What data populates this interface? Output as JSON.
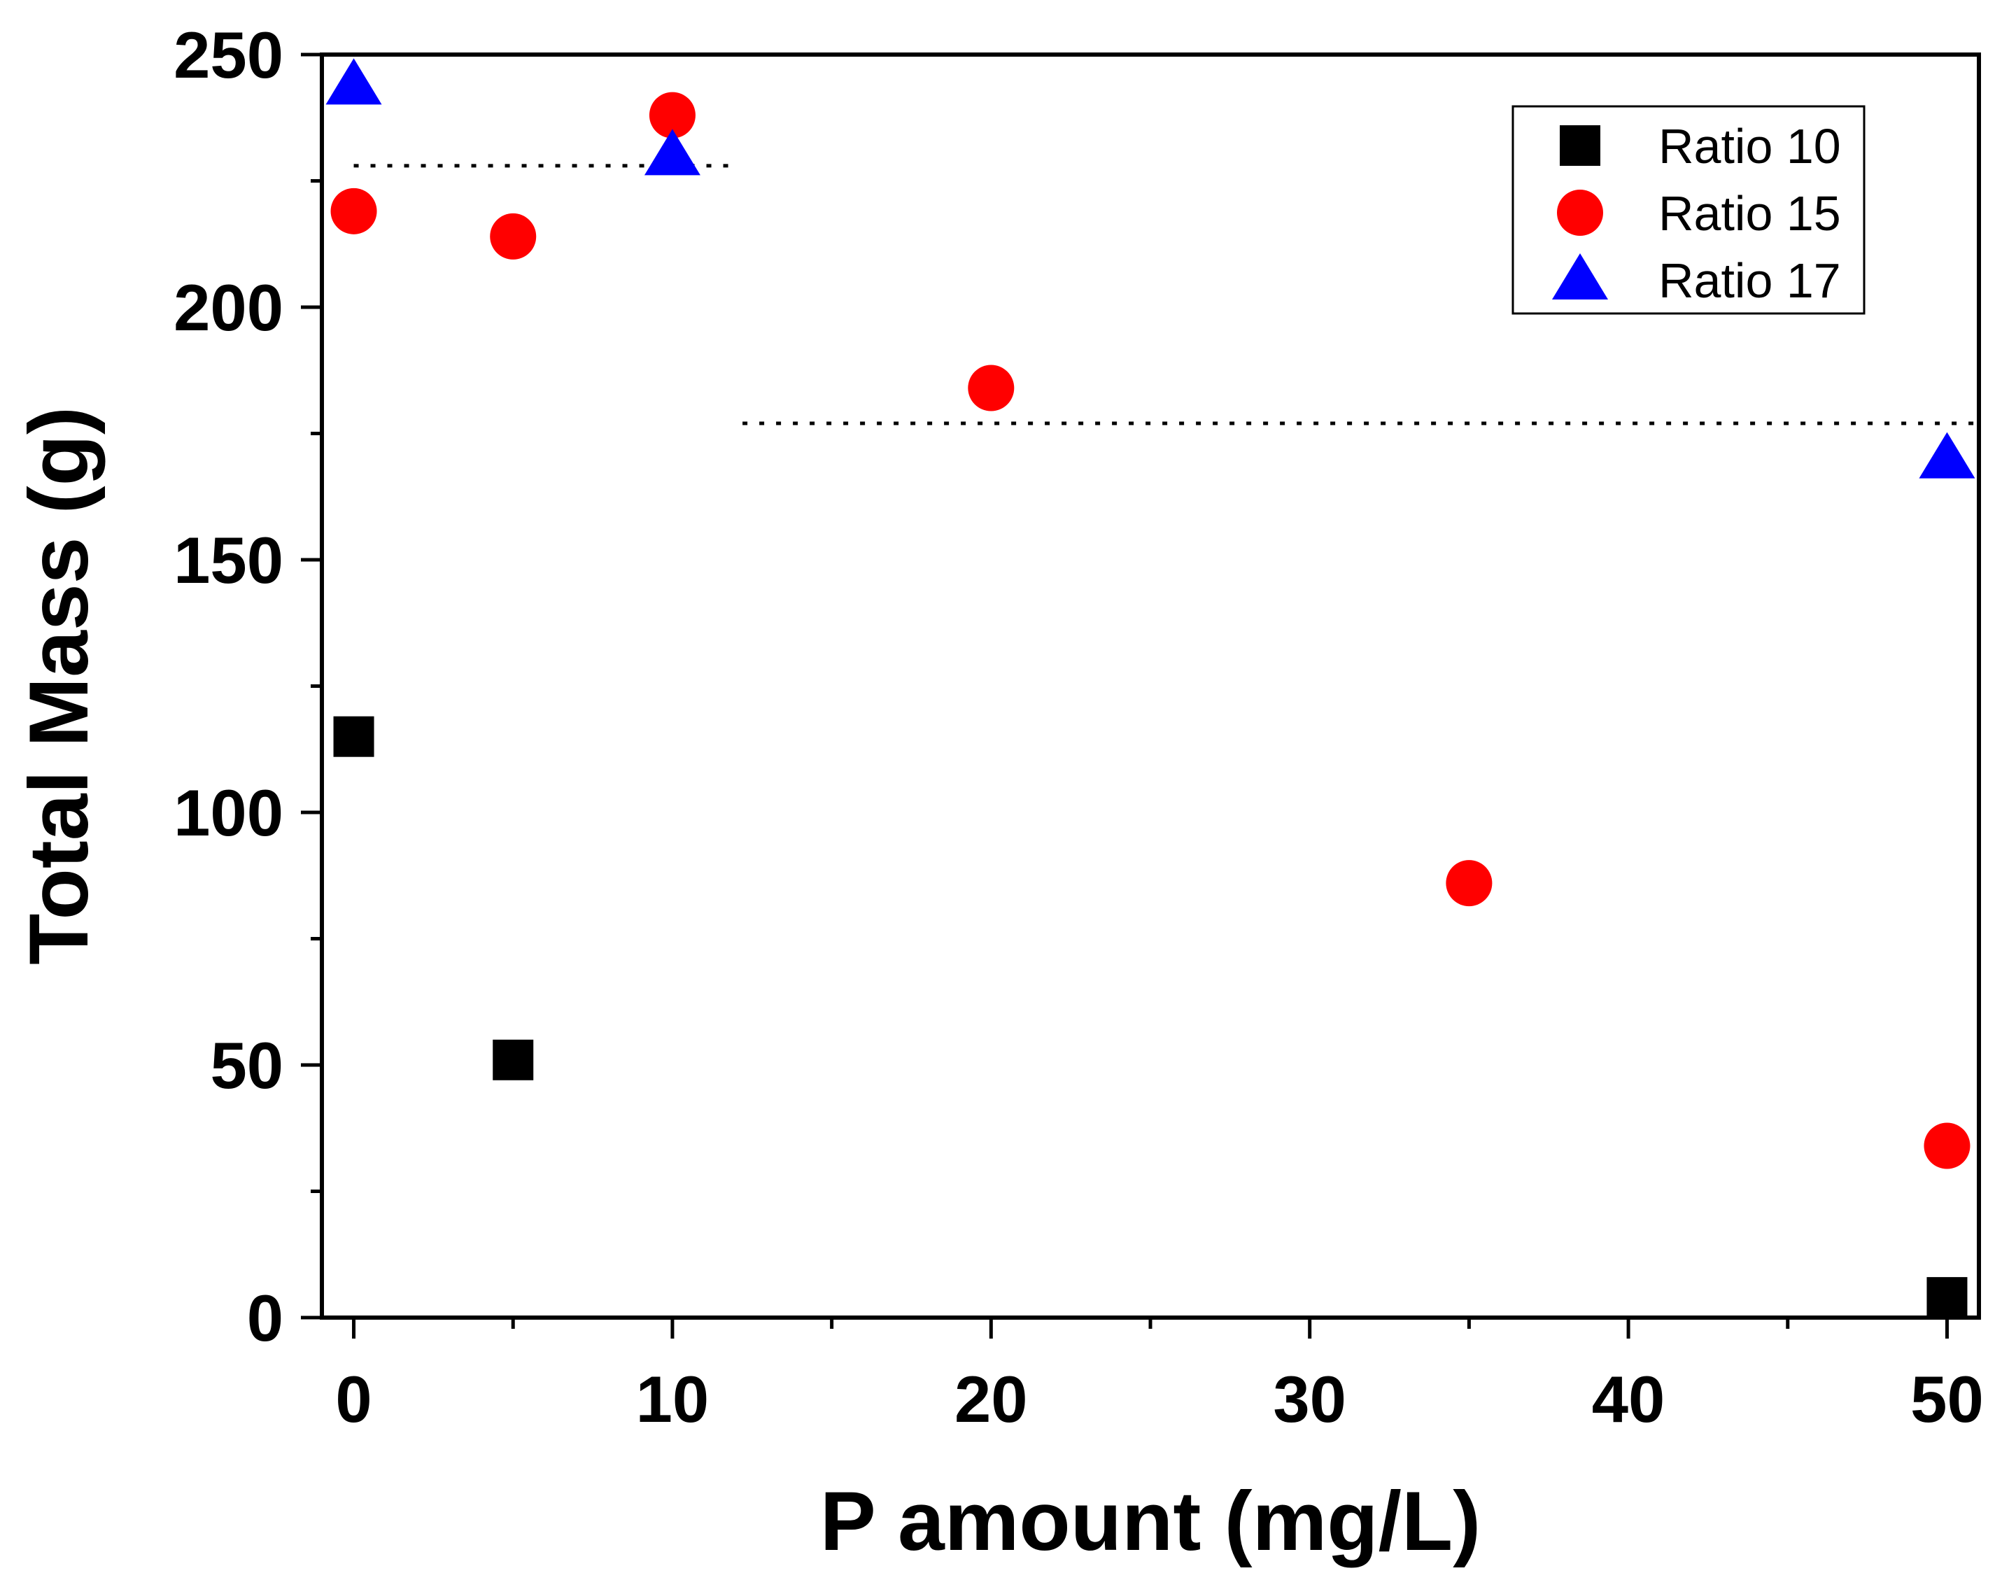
{
  "chart_data": {
    "type": "scatter",
    "title": "",
    "xlabel": "P amount (mg/L)",
    "ylabel": "Total Mass (g)",
    "xlim": [
      -1,
      51
    ],
    "ylim": [
      0,
      250
    ],
    "x_ticks": [
      0,
      10,
      20,
      30,
      40,
      50
    ],
    "x_tick_labels": [
      "0",
      "10",
      "20",
      "30",
      "40",
      "50"
    ],
    "x_minor_ticks": [
      5,
      15,
      25,
      35,
      45
    ],
    "y_ticks": [
      0,
      50,
      100,
      150,
      200,
      250
    ],
    "y_tick_labels": [
      "0",
      "50",
      "100",
      "150",
      "200",
      "250"
    ],
    "y_minor_ticks": [
      25,
      75,
      125,
      175,
      225
    ],
    "grid": false,
    "legend_position": "top-right",
    "series": [
      {
        "name": "Ratio 10",
        "marker": "square",
        "color": "#000000",
        "x": [
          0,
          5,
          50
        ],
        "y": [
          115,
          51,
          4
        ]
      },
      {
        "name": "Ratio 15",
        "marker": "circle",
        "color": "#ff0000",
        "x": [
          0,
          5,
          10,
          20,
          35,
          50
        ],
        "y": [
          219,
          214,
          238,
          184,
          86,
          34
        ]
      },
      {
        "name": "Ratio 17",
        "marker": "triangle",
        "color": "#0000ff",
        "x": [
          0,
          10,
          50
        ],
        "y": [
          244,
          230,
          170
        ]
      }
    ],
    "reference_lines": [
      {
        "name": "level-high",
        "style": "dotted",
        "x_from": 0,
        "x_to": 12,
        "y": 228
      },
      {
        "name": "level-low",
        "style": "dotted",
        "x_from": 12.2,
        "x_to": 51,
        "y": 177
      }
    ]
  }
}
